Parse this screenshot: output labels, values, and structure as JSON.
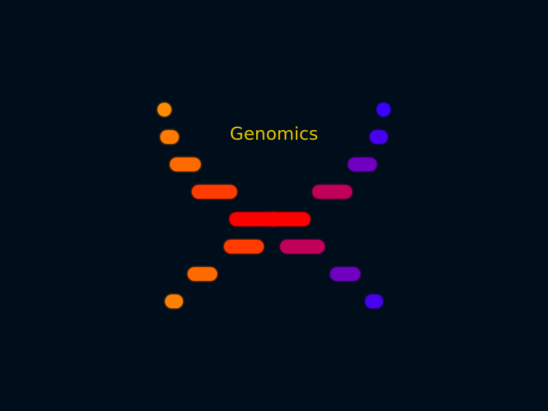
{
  "title": "Genomics",
  "colors": {
    "background": "#000d1a",
    "title": "#e8c200",
    "left_strand": [
      "#ff8c00",
      "#ff7a00",
      "#ff6a00",
      "#ff3a00",
      "#ff0000",
      "#ff3a00",
      "#ff6a00",
      "#ff8000"
    ],
    "right_strand": [
      "#3a00ff",
      "#4a00ee",
      "#7000c0",
      "#c0005a",
      "#ff0000",
      "#c0005a",
      "#7000c0",
      "#4a00ee"
    ]
  },
  "icons": [
    "double-helix-logo"
  ]
}
